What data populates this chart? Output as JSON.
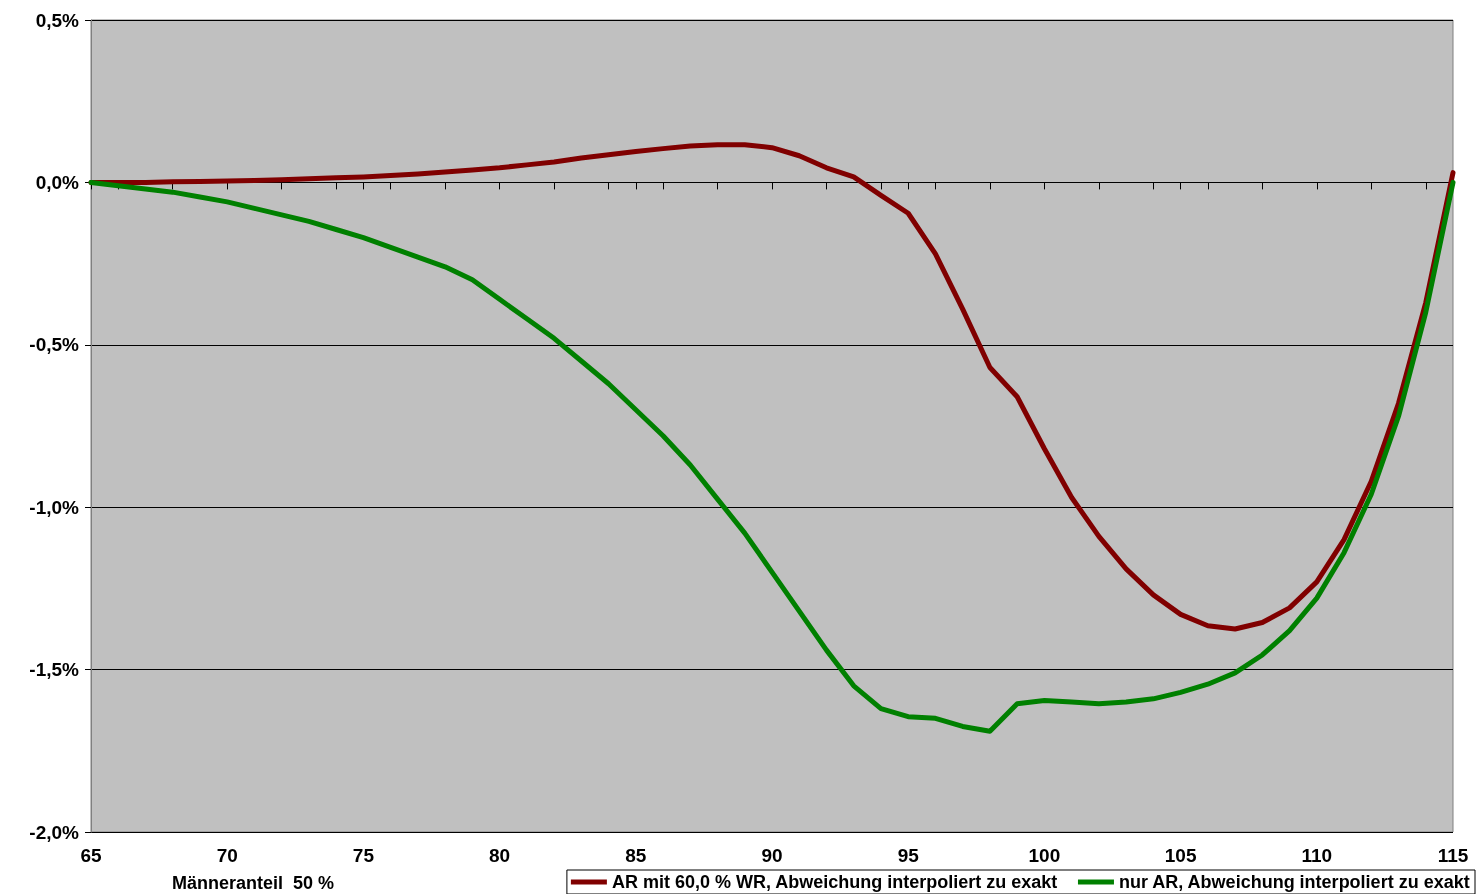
{
  "chart_data": {
    "type": "line",
    "x": [
      65,
      66,
      67,
      68,
      69,
      70,
      71,
      72,
      73,
      74,
      75,
      76,
      77,
      78,
      79,
      80,
      81,
      82,
      83,
      84,
      85,
      86,
      87,
      88,
      89,
      90,
      91,
      92,
      93,
      94,
      95,
      96,
      97,
      98,
      99,
      100,
      101,
      102,
      103,
      104,
      105,
      106,
      107,
      108,
      109,
      110,
      111,
      112,
      113,
      114,
      115
    ],
    "series": [
      {
        "name": "AR mit 60,0 % WR, Abweichung interpoliert zu exakt",
        "color": "#800000",
        "values": [
          0,
          0,
          0,
          0.002,
          0.003,
          0.004,
          0.006,
          0.008,
          0.011,
          0.014,
          0.017,
          0.021,
          0.026,
          0.032,
          0.038,
          0.045,
          0.054,
          0.063,
          0.075,
          0.085,
          0.095,
          0.104,
          0.112,
          0.116,
          0.116,
          0.107,
          0.082,
          0.045,
          0.017,
          -0.04,
          -0.095,
          -0.22,
          -0.39,
          -0.57,
          -0.66,
          -0.82,
          -0.97,
          -1.09,
          -1.19,
          -1.27,
          -1.33,
          -1.365,
          -1.375,
          -1.355,
          -1.31,
          -1.23,
          -1.1,
          -0.92,
          -0.68,
          -0.37,
          0.03
        ]
      },
      {
        "name": "nur AR, Abweichung interpoliert zu exakt",
        "color": "#008000",
        "values": [
          0,
          -0.01,
          -0.02,
          -0.03,
          -0.045,
          -0.06,
          -0.08,
          -0.1,
          -0.12,
          -0.145,
          -0.17,
          -0.2,
          -0.23,
          -0.26,
          -0.3,
          -0.36,
          -0.42,
          -0.48,
          -0.55,
          -0.62,
          -0.7,
          -0.78,
          -0.87,
          -0.975,
          -1.08,
          -1.2,
          -1.32,
          -1.44,
          -1.55,
          -1.62,
          -1.645,
          -1.65,
          -1.675,
          -1.69,
          -1.605,
          -1.595,
          -1.6,
          -1.605,
          -1.6,
          -1.59,
          -1.57,
          -1.545,
          -1.51,
          -1.455,
          -1.38,
          -1.28,
          -1.14,
          -0.96,
          -0.72,
          -0.4,
          0
        ]
      }
    ],
    "xlim": [
      65,
      115
    ],
    "xticks": [
      65,
      70,
      75,
      80,
      85,
      90,
      95,
      100,
      105,
      110,
      115
    ],
    "ylim": [
      -2,
      0.5
    ],
    "yticks": [
      {
        "value": -2,
        "label": "-2,0%"
      },
      {
        "value": -1.5,
        "label": "-1,5%"
      },
      {
        "value": -1,
        "label": "-1,0%"
      },
      {
        "value": -0.5,
        "label": "-0,5%"
      },
      {
        "value": 0,
        "label": "0,0%"
      },
      {
        "value": 0.5,
        "label": "0,5%"
      }
    ],
    "grid": "y",
    "legend": "bottom",
    "marker": "none",
    "line_style": "solid",
    "annotations": [
      "Männeranteil  50 %"
    ]
  }
}
